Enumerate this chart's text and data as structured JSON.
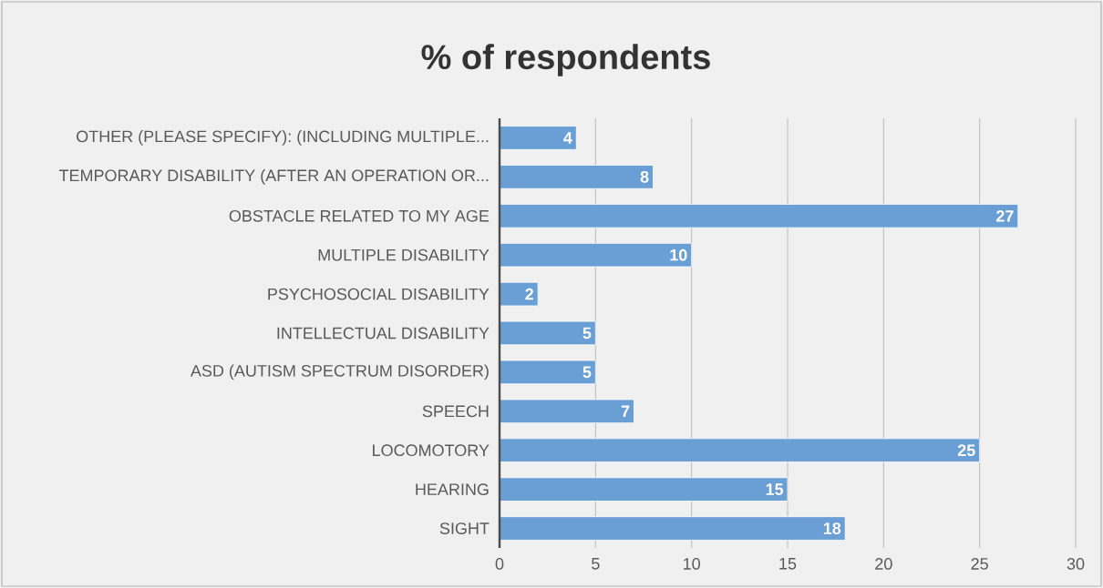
{
  "chart_data": {
    "type": "bar",
    "orientation": "horizontal",
    "title": "% of respondents",
    "categories": [
      "OTHER (PLEASE SPECIFY): (INCLUDING MULTIPLE...",
      "TEMPORARY DISABILITY (AFTER AN OPERATION OR...",
      "OBSTACLE RELATED TO MY AGE",
      "MULTIPLE DISABILITY",
      "PSYCHOSOCIAL DISABILITY",
      "INTELLECTUAL DISABILITY",
      "ASD (AUTISM SPECTRUM DISORDER)",
      "SPEECH",
      "LOCOMOTORY",
      "HEARING",
      "SIGHT"
    ],
    "values": [
      4,
      8,
      27,
      10,
      2,
      5,
      5,
      7,
      25,
      15,
      18
    ],
    "color": "#6a9fd6",
    "xlim": [
      0,
      30
    ],
    "xticks": [
      0,
      5,
      10,
      15,
      20,
      25,
      30
    ],
    "grid": "x",
    "data_labels": true
  }
}
